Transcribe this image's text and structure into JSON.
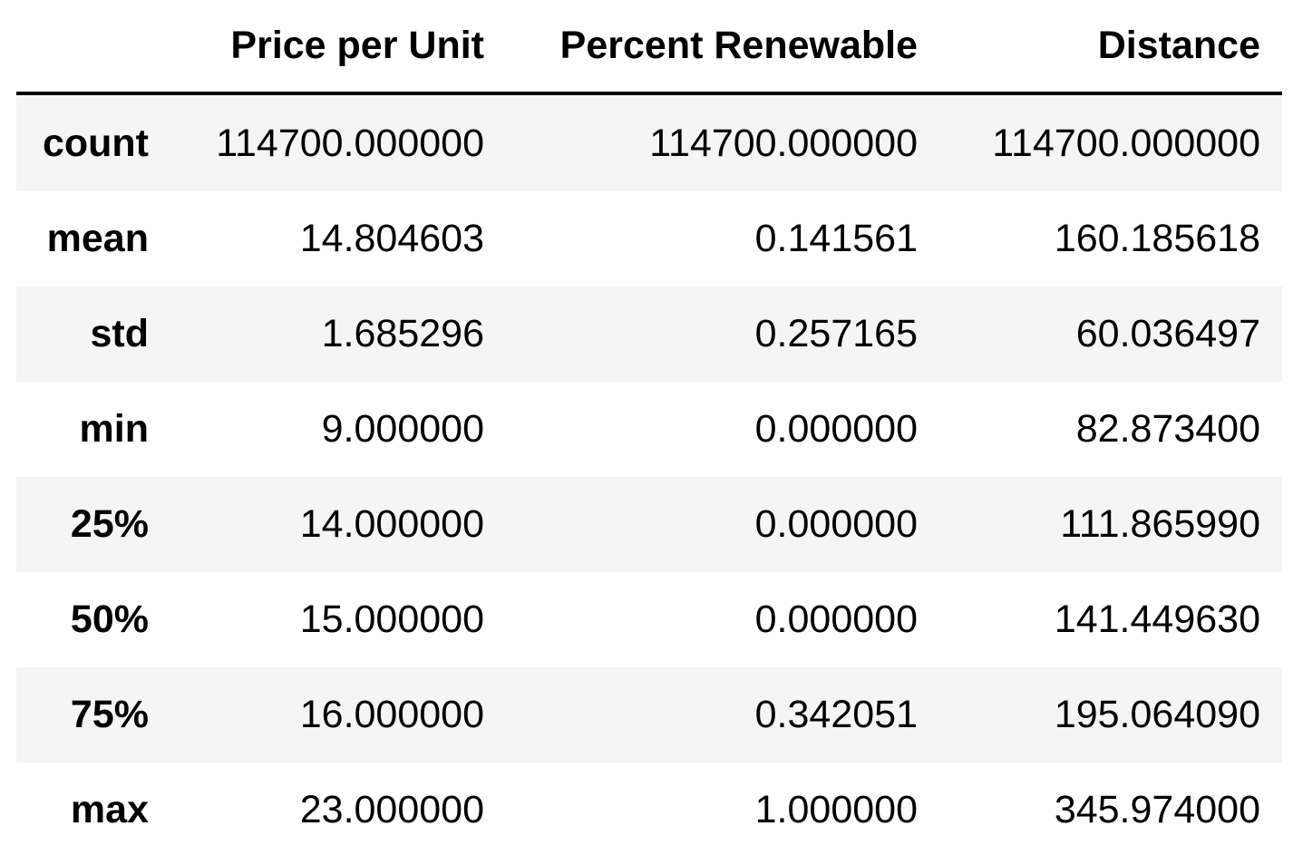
{
  "table": {
    "index_header": "",
    "columns": [
      "Price per Unit",
      "Percent Renewable",
      "Distance"
    ],
    "rows": [
      {
        "label": "count",
        "values": [
          "114700.000000",
          "114700.000000",
          "114700.000000"
        ]
      },
      {
        "label": "mean",
        "values": [
          "14.804603",
          "0.141561",
          "160.185618"
        ]
      },
      {
        "label": "std",
        "values": [
          "1.685296",
          "0.257165",
          "60.036497"
        ]
      },
      {
        "label": "min",
        "values": [
          "9.000000",
          "0.000000",
          "82.873400"
        ]
      },
      {
        "label": "25%",
        "values": [
          "14.000000",
          "0.000000",
          "111.865990"
        ]
      },
      {
        "label": "50%",
        "values": [
          "15.000000",
          "0.000000",
          "141.449630"
        ]
      },
      {
        "label": "75%",
        "values": [
          "16.000000",
          "0.342051",
          "195.064090"
        ]
      },
      {
        "label": "max",
        "values": [
          "23.000000",
          "1.000000",
          "345.974000"
        ]
      }
    ]
  }
}
